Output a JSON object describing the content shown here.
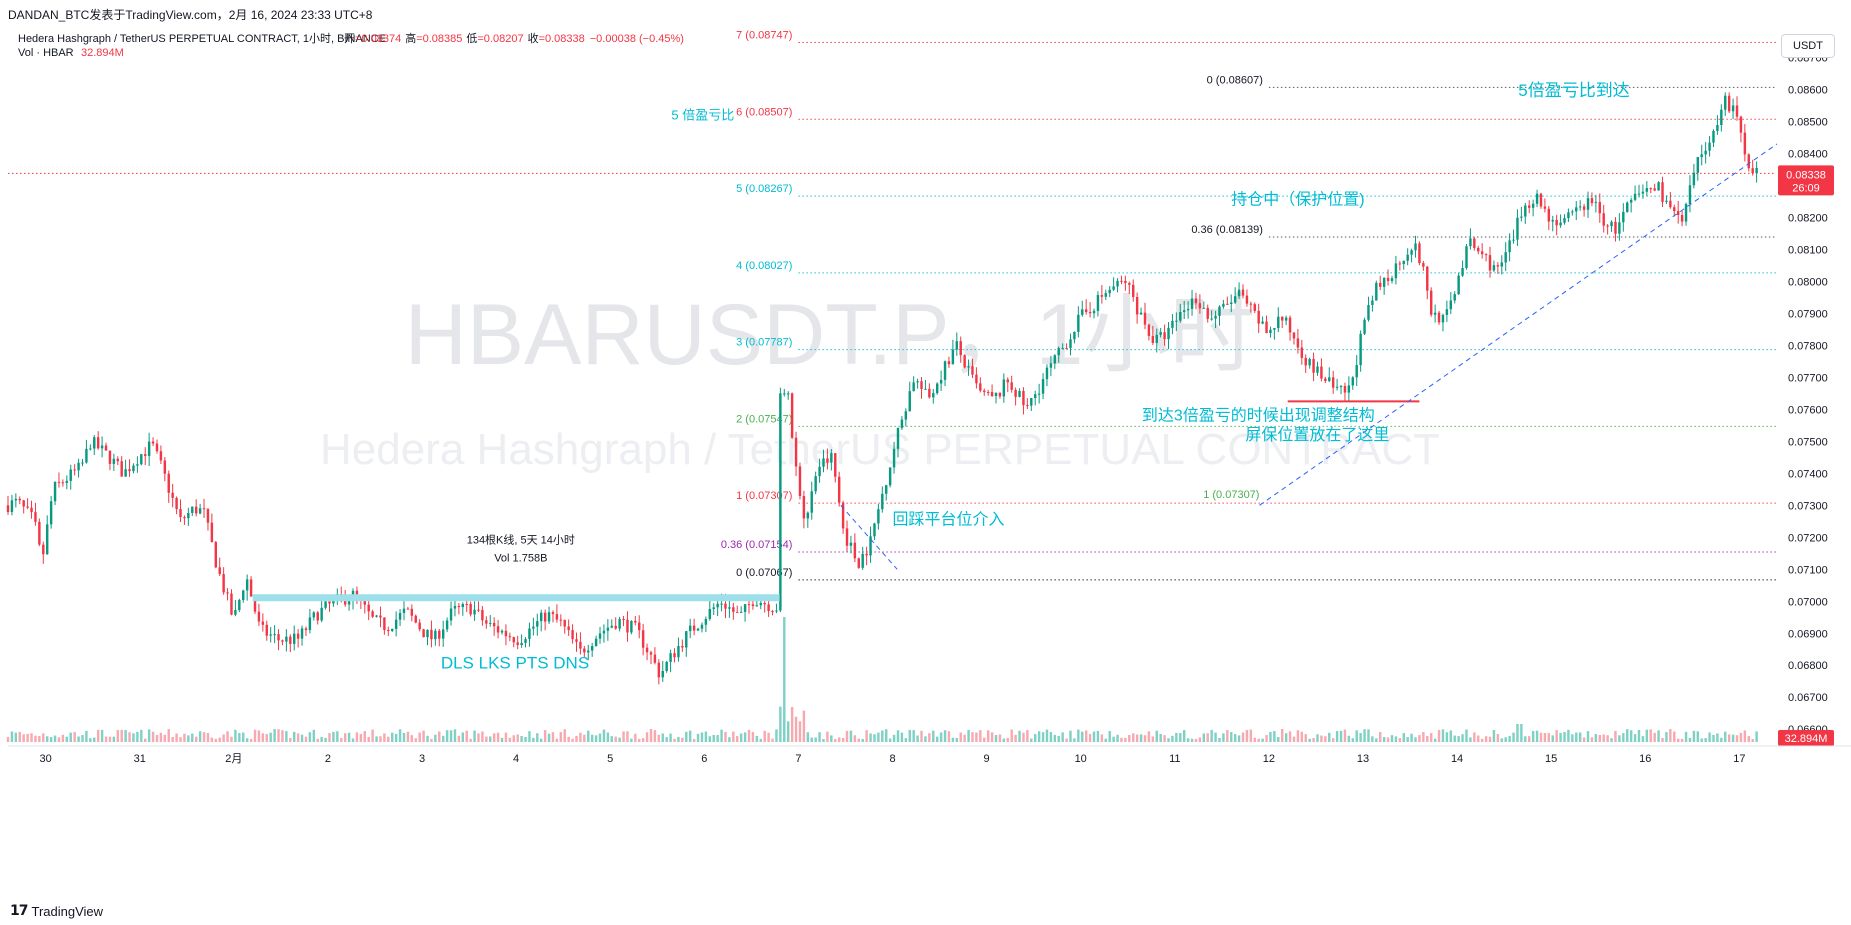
{
  "header": {
    "published": "DANDAN_BTC发表于TradingView.com，2月 16, 2024 23:33 UTC+8",
    "symbol_line": "Hedera Hashgraph / TetherUS PERPETUAL CONTRACT, 1小时, BINANCE",
    "ohlc": [
      {
        "label": "开",
        "value": "0.08374"
      },
      {
        "label": "高",
        "value": "0.08385"
      },
      {
        "label": "低",
        "value": "0.08207"
      },
      {
        "label": "收",
        "value": "0.08338"
      }
    ],
    "change": "−0.00038 (−0.45%)",
    "vol_label": "Vol · HBAR",
    "vol_value": "32.894M"
  },
  "currency_button": "USDT",
  "footer": {
    "brand": "TradingView"
  },
  "watermark": {
    "symbol": "HBARUSDT.P，1小时",
    "name": "Hedera Hashgraph / TetherUS PERPETUAL CONTRACT"
  },
  "colors": {
    "up": "#089981",
    "down": "#f23645",
    "accent_text": "#00bcd4",
    "volume_up": "#7fd1c5",
    "volume_down": "#f7a9b0",
    "zone": "#9de0ea"
  },
  "chart_data": {
    "type": "candlestick",
    "y_range": [
      0.0656,
      0.08805
    ],
    "y_ticks": [
      "0.08700",
      "0.08600",
      "0.08500",
      "0.08400",
      "0.08300",
      "0.08200",
      "0.08100",
      "0.08000",
      "0.07900",
      "0.07800",
      "0.07700",
      "0.07600",
      "0.07500",
      "0.07400",
      "0.07300",
      "0.07200",
      "0.07100",
      "0.07000",
      "0.06900",
      "0.06800",
      "0.06700",
      "0.06600"
    ],
    "x_ticks": [
      {
        "label": "30",
        "t": 0.4
      },
      {
        "label": "31",
        "t": 1.4
      },
      {
        "label": "2月",
        "t": 2.4
      },
      {
        "label": "2",
        "t": 3.4
      },
      {
        "label": "3",
        "t": 4.4
      },
      {
        "label": "4",
        "t": 5.4
      },
      {
        "label": "5",
        "t": 6.4
      },
      {
        "label": "6",
        "t": 7.4
      },
      {
        "label": "7",
        "t": 8.4
      },
      {
        "label": "8",
        "t": 9.4
      },
      {
        "label": "9",
        "t": 10.4
      },
      {
        "label": "10",
        "t": 11.4
      },
      {
        "label": "11",
        "t": 12.4
      },
      {
        "label": "12",
        "t": 13.4
      },
      {
        "label": "13",
        "t": 14.4
      },
      {
        "label": "14",
        "t": 15.4
      },
      {
        "label": "15",
        "t": 16.4
      },
      {
        "label": "16",
        "t": 17.4
      },
      {
        "label": "17",
        "t": 18.4
      }
    ],
    "price_anchors": [
      [
        0.0,
        0.073
      ],
      [
        0.12,
        0.0731
      ],
      [
        0.3,
        0.0725
      ],
      [
        0.38,
        0.0712
      ],
      [
        0.5,
        0.0735
      ],
      [
        0.8,
        0.0742
      ],
      [
        0.9,
        0.075
      ],
      [
        1.1,
        0.0745
      ],
      [
        1.25,
        0.074
      ],
      [
        1.4,
        0.0745
      ],
      [
        1.55,
        0.0749
      ],
      [
        1.65,
        0.0742
      ],
      [
        1.85,
        0.0725
      ],
      [
        2.0,
        0.0729
      ],
      [
        2.1,
        0.0728
      ],
      [
        2.25,
        0.071
      ],
      [
        2.42,
        0.0694
      ],
      [
        2.55,
        0.0708
      ],
      [
        2.7,
        0.0691
      ],
      [
        2.9,
        0.0688
      ],
      [
        3.1,
        0.0688
      ],
      [
        3.3,
        0.0696
      ],
      [
        3.5,
        0.07
      ],
      [
        3.7,
        0.0702
      ],
      [
        3.9,
        0.0694
      ],
      [
        4.05,
        0.0692
      ],
      [
        4.25,
        0.0697
      ],
      [
        4.45,
        0.069
      ],
      [
        4.55,
        0.0688
      ],
      [
        4.75,
        0.0697
      ],
      [
        4.95,
        0.0698
      ],
      [
        5.1,
        0.0693
      ],
      [
        5.3,
        0.069
      ],
      [
        5.45,
        0.0688
      ],
      [
        5.6,
        0.0692
      ],
      [
        5.75,
        0.0696
      ],
      [
        5.9,
        0.0693
      ],
      [
        6.1,
        0.0684
      ],
      [
        6.3,
        0.069
      ],
      [
        6.5,
        0.0694
      ],
      [
        6.7,
        0.0691
      ],
      [
        6.85,
        0.0683
      ],
      [
        6.95,
        0.0677
      ],
      [
        7.1,
        0.0684
      ],
      [
        7.25,
        0.069
      ],
      [
        7.45,
        0.0696
      ],
      [
        7.6,
        0.07
      ],
      [
        7.8,
        0.0695
      ],
      [
        7.95,
        0.0701
      ],
      [
        8.1,
        0.0699
      ],
      [
        8.2,
        0.0698
      ],
      [
        8.28,
        0.0764
      ],
      [
        8.38,
        0.0744
      ],
      [
        8.5,
        0.0724
      ],
      [
        8.62,
        0.0742
      ],
      [
        8.78,
        0.0745
      ],
      [
        8.9,
        0.0722
      ],
      [
        9.05,
        0.0712
      ],
      [
        9.18,
        0.0718
      ],
      [
        9.35,
        0.0738
      ],
      [
        9.5,
        0.0755
      ],
      [
        9.65,
        0.077
      ],
      [
        9.8,
        0.0763
      ],
      [
        9.95,
        0.0772
      ],
      [
        10.1,
        0.078
      ],
      [
        10.22,
        0.0772
      ],
      [
        10.35,
        0.0765
      ],
      [
        10.5,
        0.0763
      ],
      [
        10.65,
        0.0769
      ],
      [
        10.85,
        0.076
      ],
      [
        11.05,
        0.0771
      ],
      [
        11.25,
        0.078
      ],
      [
        11.4,
        0.0788
      ],
      [
        11.6,
        0.0794
      ],
      [
        11.75,
        0.0798
      ],
      [
        11.9,
        0.08
      ],
      [
        12.05,
        0.079
      ],
      [
        12.2,
        0.0781
      ],
      [
        12.35,
        0.0784
      ],
      [
        12.5,
        0.0791
      ],
      [
        12.65,
        0.0795
      ],
      [
        12.8,
        0.0788
      ],
      [
        12.95,
        0.0792
      ],
      [
        13.1,
        0.0796
      ],
      [
        13.25,
        0.079
      ],
      [
        13.4,
        0.0784
      ],
      [
        13.55,
        0.0789
      ],
      [
        13.7,
        0.0782
      ],
      [
        13.85,
        0.0774
      ],
      [
        14.0,
        0.077
      ],
      [
        14.15,
        0.0765
      ],
      [
        14.28,
        0.0766
      ],
      [
        14.42,
        0.0785
      ],
      [
        14.55,
        0.0797
      ],
      [
        14.7,
        0.0802
      ],
      [
        14.85,
        0.0808
      ],
      [
        14.95,
        0.0812
      ],
      [
        15.05,
        0.0805
      ],
      [
        15.15,
        0.079
      ],
      [
        15.3,
        0.0788
      ],
      [
        15.45,
        0.0803
      ],
      [
        15.55,
        0.0812
      ],
      [
        15.7,
        0.0808
      ],
      [
        15.85,
        0.0803
      ],
      [
        16.0,
        0.0812
      ],
      [
        16.12,
        0.0823
      ],
      [
        16.25,
        0.0827
      ],
      [
        16.4,
        0.082
      ],
      [
        16.55,
        0.0818
      ],
      [
        16.7,
        0.0822
      ],
      [
        16.85,
        0.0826
      ],
      [
        16.95,
        0.082
      ],
      [
        17.1,
        0.0816
      ],
      [
        17.25,
        0.0824
      ],
      [
        17.4,
        0.0828
      ],
      [
        17.55,
        0.083
      ],
      [
        17.7,
        0.0822
      ],
      [
        17.82,
        0.0818
      ],
      [
        17.95,
        0.0835
      ],
      [
        18.05,
        0.0842
      ],
      [
        18.15,
        0.0846
      ],
      [
        18.25,
        0.0858
      ],
      [
        18.38,
        0.0852
      ],
      [
        18.5,
        0.0838
      ],
      [
        18.6,
        0.0835
      ]
    ],
    "last_price": "0.08338",
    "countdown": "26:09",
    "last_volume": "32.894M",
    "fib_levels": [
      {
        "level": "7",
        "price": 0.08747,
        "label": "7 (0.08747)",
        "color": "#f23645",
        "x_start": 8.4
      },
      {
        "level": "6",
        "price": 0.08507,
        "label": "6 (0.08507)",
        "color": "#f23645",
        "x_start": 8.4
      },
      {
        "level": "5",
        "price": 0.08267,
        "label": "5 (0.08267)",
        "color": "#00bcd4",
        "x_start": 8.4
      },
      {
        "level": "4",
        "price": 0.08027,
        "label": "4 (0.08027)",
        "color": "#00bcd4",
        "x_start": 8.4
      },
      {
        "level": "3",
        "price": 0.07787,
        "label": "3 (0.07787)",
        "color": "#00bcd4",
        "x_start": 8.4
      },
      {
        "level": "2",
        "price": 0.07547,
        "label": "2 (0.07547)",
        "color": "#4caf50",
        "x_start": 8.4
      },
      {
        "level": "1",
        "price": 0.07307,
        "label": "1 (0.07307)",
        "color": "#f23645",
        "x_start": 8.4
      },
      {
        "level": "0.36",
        "price": 0.07154,
        "label": "0.36 (0.07154)",
        "color": "#9c27b0",
        "x_start": 8.4
      },
      {
        "level": "0",
        "price": 0.07067,
        "label": "0 (0.07067)",
        "color": "#131722",
        "x_start": 8.4
      }
    ],
    "fib_labels_right": [
      {
        "price": 0.07307,
        "label": "1 (0.07307)",
        "color": "#4caf50",
        "x": 13.3
      }
    ],
    "fib_small": [
      {
        "price": 0.08607,
        "label": "0 (0.08607)",
        "color": "#131722",
        "x_start": 13.4
      },
      {
        "price": 0.08139,
        "label": "0.36 (0.08139)",
        "color": "#131722",
        "x_start": 13.4
      }
    ],
    "zone": {
      "x_start": 2.6,
      "x_end": 8.2,
      "price_top": 0.07022,
      "price_bottom": 0.07008
    },
    "range_label": {
      "bars": "134根K线, 5天 14小时",
      "vol": "Vol 1.758B"
    },
    "support_line": {
      "x_start": 13.6,
      "x_end": 15.0,
      "price": 0.07625
    },
    "trendline": {
      "x1": 13.3,
      "p1": 0.073,
      "x2": 18.8,
      "p2": 0.0843
    },
    "short_dashed": {
      "x1": 8.85,
      "p1": 0.073,
      "x2": 9.45,
      "p2": 0.071
    },
    "annotations": [
      {
        "text": "5 倍盈亏比",
        "x": 7.05,
        "price": 0.08507,
        "size": 13
      },
      {
        "text": "5倍盈亏比到达",
        "x": 16.05,
        "price": 0.0858,
        "size": 17
      },
      {
        "text": "持仓中（保护位置)",
        "x": 13.0,
        "price": 0.0824,
        "size": 16
      },
      {
        "text": "到达3倍盈亏的时候出现调整结构",
        "x": 12.05,
        "price": 0.07565,
        "size": 16
      },
      {
        "text": "屏保位置放在了这里",
        "x": 13.15,
        "price": 0.07505,
        "size": 16
      },
      {
        "text": "回踩平台位介入",
        "x": 9.4,
        "price": 0.0724,
        "size": 16
      },
      {
        "text": "DLS LKS PTS DNS",
        "x": 4.6,
        "price": 0.0679,
        "size": 17
      }
    ]
  }
}
